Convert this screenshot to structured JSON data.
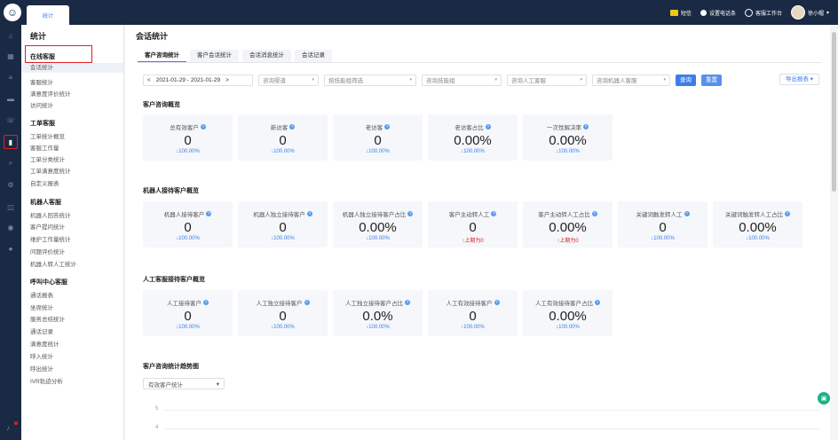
{
  "topbar": {
    "tab_label": "统计",
    "items": [
      {
        "label": "短信",
        "icon": "sms-icon"
      },
      {
        "label": "设置电话条",
        "icon": "phone-settings-icon"
      },
      {
        "label": "客服工作台",
        "icon": "headset-icon"
      },
      {
        "label": "徐小帽",
        "icon": "avatar"
      }
    ]
  },
  "sidenav": {
    "title": "统计",
    "sections": [
      {
        "title": "在线客服",
        "items": [
          "会话统计",
          "客服统计",
          "满意度评价统计",
          "访问统计"
        ]
      },
      {
        "title": "工单客服",
        "items": [
          "工单统计概览",
          "客服工作量",
          "工单分类统计",
          "工单满意度统计",
          "自定义报表"
        ]
      },
      {
        "title": "机器人客服",
        "items": [
          "机器人回答统计",
          "客户提问统计",
          "维护工作量统计",
          "问题评价统计",
          "机器人转人工统计"
        ]
      },
      {
        "title": "呼叫中心客服",
        "items": [
          "通话报表",
          "坐席统计",
          "服务总结统计",
          "通话记录",
          "满意度统计",
          "呼入统计",
          "呼出统计",
          "IVR轨迹分析"
        ]
      }
    ],
    "selected": "会话统计"
  },
  "main": {
    "title": "会话统计",
    "tabs": [
      "客户咨询统计",
      "客户会话统计",
      "会话消息统计",
      "会话记录"
    ],
    "active_tab": 0,
    "filters": {
      "date_range": "2021-01-29 - 2021-01-29",
      "prev": "<",
      "next": ">",
      "channel": "咨询渠道",
      "skill_group": "按技能组筛选",
      "skill": "咨询技能组",
      "human_agent": "咨询人工客服",
      "robot_agent": "咨询机器人客服",
      "query_btn": "查询",
      "reset_btn": "重置",
      "export_btn": "导出报表"
    },
    "sections": [
      {
        "title": "客户咨询概览",
        "cards": [
          {
            "label": "总有效客户",
            "value": "0",
            "change": "↓100.00%",
            "up": false
          },
          {
            "label": "新访客",
            "value": "0",
            "change": "↓100.00%",
            "up": false
          },
          {
            "label": "老访客",
            "value": "0",
            "change": "↓100.00%",
            "up": false
          },
          {
            "label": "老访客占比",
            "value": "0.00%",
            "change": "↓100.00%",
            "up": false
          },
          {
            "label": "一次性解决率",
            "value": "0.00%",
            "change": "↓100.00%",
            "up": false
          }
        ]
      },
      {
        "title": "机器人接待客户概览",
        "cards": [
          {
            "label": "机器人接待客户",
            "value": "0",
            "change": "↓100.00%",
            "up": false
          },
          {
            "label": "机器人独立接待客户",
            "value": "0",
            "change": "↓100.00%",
            "up": false
          },
          {
            "label": "机器人独立接待客户占比",
            "value": "0.00%",
            "change": "↓100.00%",
            "up": false
          },
          {
            "label": "客户主动转人工",
            "value": "0",
            "change": "↑上期为0",
            "up": true
          },
          {
            "label": "客户主动转人工占比",
            "value": "0.00%",
            "change": "↑上期为0",
            "up": true
          },
          {
            "label": "关键词触发转人工",
            "value": "0",
            "change": "↓100.00%",
            "up": false
          },
          {
            "label": "关键词触发转人工占比",
            "value": "0.00%",
            "change": "↓100.00%",
            "up": false
          }
        ]
      },
      {
        "title": "人工客服接待客户概览",
        "cards": [
          {
            "label": "人工接待客户",
            "value": "0",
            "change": "↓100.00%",
            "up": false
          },
          {
            "label": "人工独立接待客户",
            "value": "0",
            "change": "↓100.00%",
            "up": false
          },
          {
            "label": "人工独立接待客户占比",
            "value": "0.0%",
            "change": "↓100.00%",
            "up": false
          },
          {
            "label": "人工有效接待客户",
            "value": "0",
            "change": "↓100.00%",
            "up": false
          },
          {
            "label": "人工有效接待客户占比",
            "value": "0.00%",
            "change": "↓100.00%",
            "up": false
          }
        ]
      }
    ],
    "trend": {
      "title": "客户咨询统计趋势图",
      "metric": "有效客户统计",
      "y_ticks": [
        "5",
        "4"
      ]
    }
  },
  "colors": {
    "accent": "#3b7de9",
    "sidebar": "#1a2a44",
    "highlight": "#e02020",
    "float": "#19b386"
  }
}
